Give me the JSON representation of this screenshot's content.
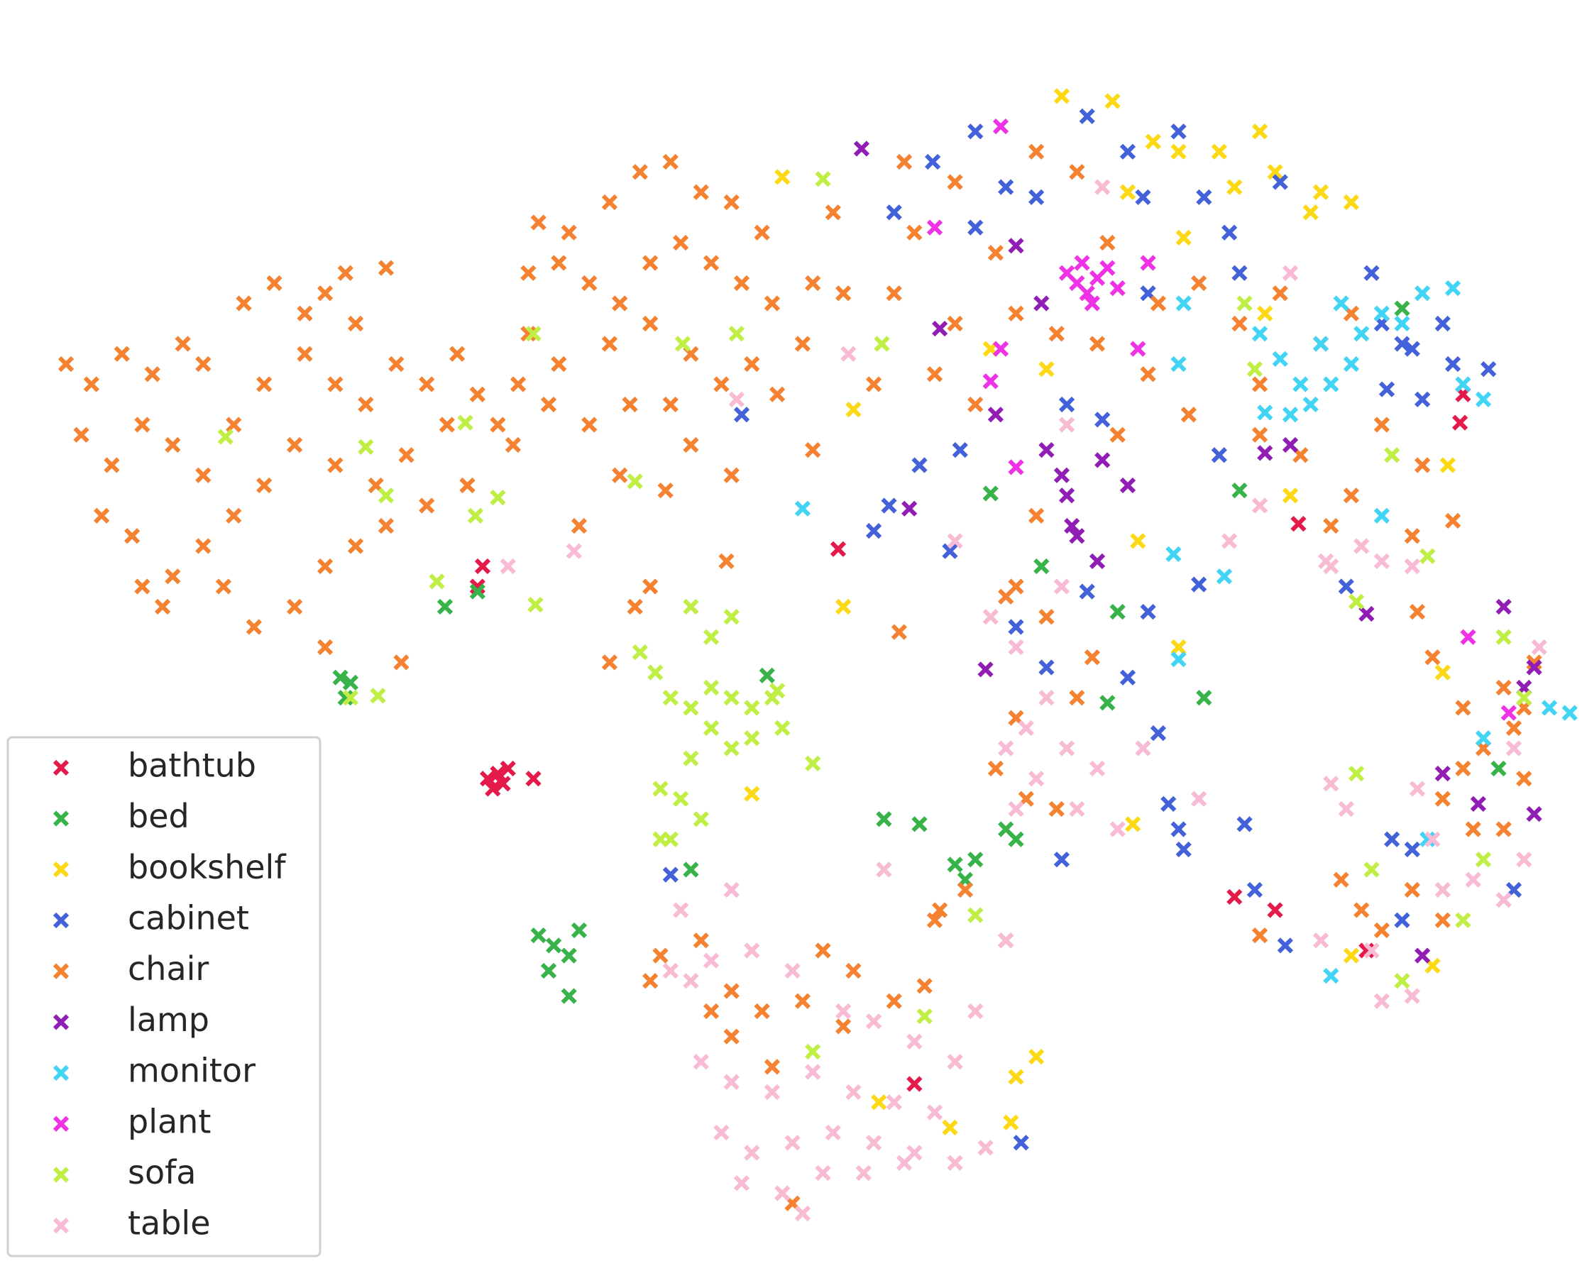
{
  "chart_data": {
    "type": "scatter",
    "legend": "lower left",
    "xlim": [
      0,
      1562
    ],
    "ylim": [
      1266,
      0
    ],
    "series": [
      {
        "name": "bathtub",
        "color": "#e31a4a",
        "x": [
          475,
          470,
          490,
          480,
          495,
          500,
          485,
          525,
          825,
          900,
          1215,
          1255,
          1278,
          1440,
          1345,
          1437
        ],
        "y": [
          560,
          580,
          765,
          770,
          775,
          760,
          780,
          770,
          543,
          1072,
          887,
          900,
          518,
          390,
          940,
          418
        ]
      },
      {
        "name": "bed",
        "color": "#37b34a",
        "x": [
          438,
          470,
          335,
          340,
          345,
          755,
          870,
          905,
          940,
          960,
          990,
          1000,
          975,
          1100,
          1185,
          1220,
          530,
          545,
          570,
          560,
          540,
          560,
          680,
          1025,
          1380,
          1475,
          1090,
          950
        ],
        "y": [
          600,
          585,
          670,
          690,
          675,
          668,
          810,
          815,
          855,
          850,
          820,
          830,
          488,
          605,
          690,
          485,
          925,
          935,
          920,
          945,
          960,
          985,
          860,
          560,
          305,
          760,
          695,
          870
        ]
      },
      {
        "name": "bookshelf",
        "color": "#fcd914",
        "x": [
          1045,
          1095,
          1135,
          1160,
          1200,
          1240,
          1300,
          1330,
          1110,
          770,
          1165,
          1215,
          1255,
          1290,
          840,
          1030,
          1245,
          1425,
          1270,
          830,
          1120,
          1160,
          1420,
          740,
          1115,
          865,
          1000,
          1020,
          935,
          995,
          1330,
          1410,
          975
        ],
        "y": [
          95,
          100,
          140,
          150,
          150,
          130,
          190,
          200,
          190,
          175,
          235,
          185,
          170,
          210,
          405,
          365,
          310,
          460,
          490,
          600,
          535,
          640,
          665,
          785,
          815,
          1090,
          1065,
          1045,
          1115,
          1110,
          945,
          955,
          345
        ]
      },
      {
        "name": "cabinet",
        "color": "#4361d8",
        "x": [
          960,
          990,
          1070,
          1110,
          1020,
          880,
          960,
          918,
          1125,
          1160,
          1185,
          1210,
          1220,
          1260,
          1350,
          1360,
          1390,
          1420,
          1430,
          1465,
          1400,
          1380,
          1365,
          905,
          945,
          875,
          860,
          935,
          1050,
          1085,
          1200,
          1180,
          1130,
          1070,
          1030,
          1110,
          1140,
          1150,
          1160,
          1165,
          1225,
          1370,
          1390,
          1380,
          1235,
          1265,
          1490,
          660,
          1005,
          1045,
          730,
          1130,
          1000,
          1325
        ],
        "y": [
          130,
          185,
          115,
          150,
          195,
          210,
          225,
          160,
          195,
          130,
          195,
          230,
          270,
          180,
          270,
          320,
          345,
          320,
          360,
          365,
          395,
          340,
          385,
          460,
          445,
          500,
          525,
          545,
          400,
          415,
          450,
          578,
          605,
          585,
          660,
          670,
          725,
          795,
          820,
          840,
          815,
          830,
          840,
          910,
          880,
          935,
          880,
          865,
          1130,
          850,
          410,
          290,
          620,
          580
        ]
      },
      {
        "name": "chair",
        "color": "#f58231",
        "x": [
          65,
          90,
          120,
          150,
          180,
          200,
          80,
          110,
          140,
          170,
          200,
          230,
          260,
          240,
          270,
          300,
          320,
          340,
          380,
          350,
          300,
          330,
          360,
          390,
          420,
          450,
          470,
          440,
          400,
          370,
          330,
          290,
          260,
          230,
          200,
          170,
          140,
          100,
          130,
          160,
          220,
          250,
          290,
          320,
          350,
          380,
          420,
          460,
          490,
          510,
          540,
          320,
          395,
          505,
          530,
          560,
          600,
          630,
          660,
          690,
          720,
          750,
          520,
          550,
          580,
          610,
          640,
          670,
          700,
          730,
          760,
          800,
          830,
          820,
          600,
          640,
          680,
          710,
          740,
          790,
          660,
          620,
          580,
          550,
          520,
          680,
          610,
          570,
          655,
          765,
          800,
          720,
          900,
          940,
          980,
          1020,
          1060,
          1090,
          1140,
          1180,
          1220,
          1260,
          1300,
          1330,
          1360,
          1400,
          1330,
          1310,
          1430,
          1390,
          940,
          960,
          1000,
          1040,
          1080,
          1130,
          1170,
          1240,
          1280,
          1240,
          1100,
          1020,
          890,
          920,
          880,
          860,
          1000,
          1030,
          640,
          715,
          625,
          600,
          885,
          990,
          1075,
          1060,
          1000,
          980,
          1010,
          925,
          950,
          990,
          920,
          650,
          640,
          690,
          720,
          750,
          790,
          810,
          840,
          880,
          910,
          720,
          760,
          830,
          700,
          1040,
          1320,
          1340,
          1360,
          1390,
          1420,
          1410,
          1440,
          1460,
          1490,
          1480,
          1500,
          1440,
          1420,
          1450,
          1480,
          1240,
          1395,
          1510,
          1500,
          780
        ],
        "y": [
          360,
          380,
          350,
          370,
          340,
          360,
          430,
          460,
          420,
          440,
          470,
          420,
          380,
          300,
          280,
          310,
          290,
          270,
          265,
          320,
          350,
          380,
          400,
          360,
          380,
          350,
          390,
          420,
          450,
          480,
          460,
          440,
          480,
          510,
          540,
          570,
          580,
          510,
          530,
          600,
          580,
          620,
          600,
          560,
          540,
          520,
          500,
          480,
          420,
          380,
          400,
          640,
          655,
          440,
          220,
          230,
          200,
          170,
          160,
          190,
          200,
          230,
          270,
          260,
          280,
          300,
          260,
          240,
          260,
          280,
          300,
          280,
          290,
          210,
          340,
          320,
          350,
          380,
          360,
          340,
          400,
          400,
          420,
          360,
          330,
          440,
          470,
          520,
          485,
          390,
          445,
          470,
          230,
          180,
          250,
          150,
          170,
          240,
          300,
          280,
          320,
          290,
          340,
          310,
          420,
          460,
          490,
          520,
          515,
          530,
          320,
          400,
          310,
          330,
          340,
          370,
          410,
          430,
          450,
          380,
          430,
          510,
          160,
          370,
          290,
          380,
          580,
          610,
          580,
          555,
          600,
          655,
          625,
          590,
          650,
          690,
          710,
          760,
          790,
          900,
          880,
          930,
          910,
          945,
          970,
          930,
          980,
          1000,
          990,
          940,
          960,
          990,
          975,
          1025,
          1055,
          1015,
          1000,
          800,
          870,
          900,
          920,
          880,
          910,
          650,
          700,
          740,
          720,
          680,
          770,
          760,
          790,
          820,
          820,
          925,
          605,
          655,
          700,
          1190
        ]
      },
      {
        "name": "lamp",
        "color": "#911eb4",
        "x": [
          848,
          1000,
          1025,
          925,
          980,
          1030,
          1045,
          1050,
          1055,
          1060,
          1080,
          1110,
          1085,
          1245,
          1270,
          1345,
          895,
          1480,
          1500,
          1510,
          1420,
          1455,
          1510,
          970,
          1400
        ],
        "y": [
          147,
          243,
          300,
          325,
          410,
          445,
          470,
          490,
          520,
          530,
          555,
          480,
          455,
          448,
          440,
          607,
          503,
          600,
          680,
          660,
          765,
          795,
          805,
          662,
          945
        ]
      },
      {
        "name": "monitor",
        "color": "#42d4f4",
        "x": [
          1240,
          1260,
          1280,
          1300,
          1320,
          1340,
          1360,
          1400,
          1430,
          1380,
          1440,
          1460,
          1245,
          1270,
          1290,
          1310,
          1165,
          1160,
          790,
          1155,
          1160,
          1205,
          1360,
          1460,
          1525,
          1545,
          1405,
          1310,
          1330
        ],
        "y": [
          330,
          355,
          380,
          340,
          300,
          330,
          310,
          290,
          285,
          320,
          380,
          395,
          408,
          410,
          400,
          380,
          300,
          360,
          503,
          548,
          652,
          570,
          510,
          730,
          700,
          705,
          830,
          965,
          360
        ]
      },
      {
        "name": "plant",
        "color": "#f032e6",
        "x": [
          985,
          920,
          1000,
          1050,
          1060,
          1070,
          1080,
          1090,
          1100,
          1065,
          1075,
          1130,
          1120,
          985,
          975,
          1445,
          1485
        ],
        "y": [
          125,
          225,
          462,
          270,
          280,
          290,
          275,
          265,
          285,
          260,
          300,
          260,
          345,
          345,
          377,
          630,
          705
        ]
      },
      {
        "name": "sofa",
        "color": "#bfef45",
        "x": [
          810,
          525,
          725,
          672,
          868,
          222,
          360,
          458,
          380,
          490,
          468,
          430,
          527,
          625,
          345,
          372,
          680,
          700,
          720,
          630,
          645,
          660,
          680,
          700,
          720,
          740,
          760,
          700,
          720,
          740,
          770,
          680,
          650,
          670,
          690,
          660,
          650,
          800,
          765,
          1225,
          1235,
          1370,
          1405,
          1335,
          1480,
          1500,
          1335,
          1350,
          1380,
          1440,
          1460,
          910,
          800,
          960
        ],
        "y": [
          177,
          330,
          330,
          340,
          340,
          432,
          442,
          418,
          490,
          492,
          510,
          575,
          598,
          476,
          690,
          688,
          600,
          630,
          610,
          645,
          665,
          690,
          700,
          680,
          690,
          700,
          690,
          720,
          740,
          730,
          720,
          750,
          780,
          790,
          810,
          830,
          830,
          755,
          683,
          300,
          365,
          450,
          550,
          595,
          630,
          690,
          765,
          860,
          970,
          910,
          850,
          1005,
          1040,
          905
        ]
      },
      {
        "name": "table",
        "color": "#f8bbd3",
        "x": [
          500,
          565,
          725,
          835,
          1085,
          1270,
          1305,
          1360,
          940,
          1045,
          1000,
          1030,
          1010,
          1050,
          1020,
          1000,
          1060,
          990,
          1080,
          1100,
          1125,
          870,
          720,
          670,
          660,
          680,
          700,
          740,
          780,
          830,
          860,
          900,
          940,
          960,
          690,
          720,
          760,
          800,
          840,
          880,
          920,
          710,
          740,
          780,
          820,
          860,
          900,
          940,
          970,
          730,
          770,
          810,
          850,
          890,
          790,
          990,
          1180,
          1310,
          1325,
          1395,
          1450,
          1480,
          1420,
          1350,
          1360,
          1300,
          1390,
          1500,
          1515,
          1490,
          1240,
          1210,
          1310,
          1340,
          1390,
          1050,
          975,
          1410
        ],
        "y": [
          560,
          545,
          395,
          350,
          185,
          270,
          555,
          555,
          535,
          580,
          640,
          690,
          720,
          740,
          770,
          800,
          800,
          740,
          760,
          820,
          740,
          860,
          880,
          900,
          960,
          970,
          950,
          940,
          960,
          1000,
          1010,
          1030,
          1050,
          1000,
          1050,
          1070,
          1080,
          1060,
          1080,
          1090,
          1100,
          1120,
          1140,
          1130,
          1120,
          1130,
          1140,
          1150,
          1135,
          1170,
          1180,
          1160,
          1160,
          1150,
          1200,
          930,
          790,
          775,
          800,
          780,
          870,
          890,
          880,
          940,
          990,
          930,
          985,
          850,
          640,
          740,
          500,
          535,
          560,
          540,
          560,
          420,
          610,
          830
        ]
      }
    ]
  }
}
